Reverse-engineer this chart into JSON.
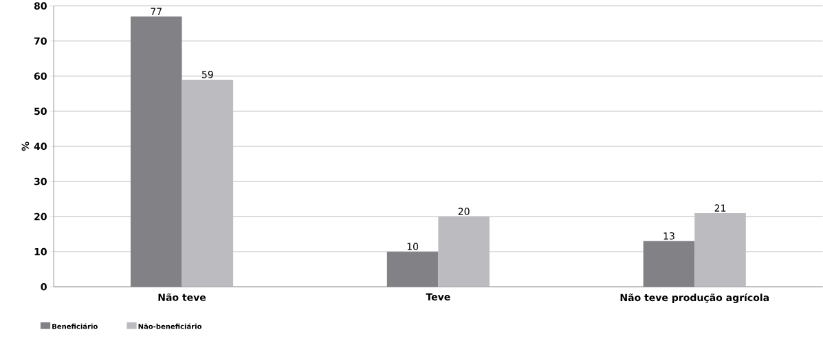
{
  "chart_data": {
    "type": "bar",
    "ylabel": "%",
    "categories": [
      "Não teve",
      "Teve",
      "Não teve produção agrícola"
    ],
    "series": [
      {
        "name": "Beneficiário",
        "color": "#818186",
        "values": [
          77,
          10,
          13
        ]
      },
      {
        "name": "Não-beneficiário",
        "color": "#bcbcc0",
        "values": [
          59,
          20,
          21
        ]
      }
    ],
    "ylim": [
      0,
      80
    ],
    "yticks": [
      0,
      10,
      20,
      30,
      40,
      50,
      60,
      70,
      80
    ],
    "grid": "y",
    "legend": "bottom left",
    "data_labels": true
  }
}
